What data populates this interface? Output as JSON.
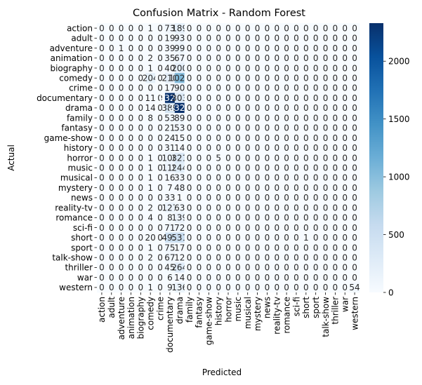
{
  "chart_data": {
    "type": "heatmap",
    "title": "Confusion Matrix - Random Forest",
    "xlabel": "Predicted",
    "ylabel": "Actual",
    "labels": [
      "action",
      "adult",
      "adventure",
      "animation",
      "biography",
      "comedy",
      "crime",
      "documentary",
      "drama",
      "family",
      "fantasy",
      "game-show",
      "history",
      "horror",
      "music",
      "musical",
      "mystery",
      "news",
      "reality-tv",
      "romance",
      "sci-fi",
      "short",
      "sport",
      "talk-show",
      "thriller",
      "war",
      "western"
    ],
    "matrix": [
      [
        0,
        0,
        0,
        0,
        0,
        1,
        0,
        73,
        189,
        0,
        0,
        0,
        0,
        0,
        0,
        0,
        0,
        0,
        0,
        0,
        0,
        0,
        0,
        0,
        0,
        0,
        0
      ],
      [
        0,
        0,
        0,
        0,
        0,
        0,
        0,
        19,
        93,
        0,
        0,
        0,
        0,
        0,
        0,
        0,
        0,
        0,
        0,
        0,
        0,
        0,
        0,
        0,
        0,
        0,
        0
      ],
      [
        0,
        0,
        1,
        0,
        0,
        0,
        0,
        39,
        99,
        0,
        0,
        0,
        0,
        0,
        0,
        0,
        0,
        0,
        0,
        0,
        0,
        0,
        0,
        0,
        0,
        0,
        0
      ],
      [
        0,
        0,
        0,
        0,
        0,
        2,
        0,
        35,
        67,
        0,
        0,
        0,
        0,
        0,
        0,
        0,
        0,
        0,
        0,
        0,
        0,
        0,
        0,
        0,
        0,
        0,
        0
      ],
      [
        0,
        0,
        0,
        0,
        0,
        1,
        0,
        40,
        200,
        0,
        0,
        0,
        0,
        0,
        0,
        0,
        0,
        0,
        0,
        0,
        0,
        0,
        0,
        0,
        0,
        0,
        0
      ],
      [
        0,
        0,
        0,
        0,
        0,
        204,
        0,
        210,
        1028,
        0,
        0,
        0,
        0,
        0,
        0,
        0,
        0,
        0,
        0,
        0,
        0,
        0,
        0,
        0,
        0,
        0,
        0
      ],
      [
        0,
        0,
        0,
        0,
        0,
        0,
        0,
        17,
        90,
        0,
        0,
        0,
        0,
        0,
        0,
        0,
        0,
        0,
        0,
        0,
        0,
        0,
        0,
        0,
        0,
        0,
        0
      ],
      [
        0,
        0,
        0,
        0,
        0,
        11,
        0,
        2324,
        303,
        0,
        0,
        0,
        0,
        0,
        0,
        0,
        0,
        0,
        0,
        0,
        0,
        0,
        0,
        0,
        0,
        0,
        0
      ],
      [
        0,
        0,
        0,
        0,
        0,
        14,
        0,
        389,
        2329,
        0,
        0,
        0,
        0,
        0,
        0,
        0,
        0,
        0,
        0,
        0,
        0,
        0,
        0,
        0,
        0,
        0,
        0
      ],
      [
        0,
        0,
        0,
        0,
        0,
        8,
        0,
        53,
        89,
        0,
        0,
        0,
        0,
        0,
        0,
        0,
        0,
        0,
        0,
        0,
        0,
        0,
        0,
        0,
        0,
        0,
        0
      ],
      [
        0,
        0,
        0,
        0,
        0,
        0,
        0,
        21,
        53,
        0,
        0,
        0,
        0,
        0,
        0,
        0,
        0,
        0,
        0,
        0,
        0,
        0,
        0,
        0,
        0,
        0,
        0
      ],
      [
        0,
        0,
        0,
        0,
        0,
        0,
        0,
        24,
        15,
        0,
        0,
        0,
        0,
        0,
        0,
        0,
        0,
        0,
        0,
        0,
        0,
        0,
        0,
        0,
        0,
        0,
        0
      ],
      [
        0,
        0,
        0,
        0,
        0,
        0,
        0,
        31,
        14,
        0,
        0,
        0,
        0,
        0,
        0,
        0,
        0,
        0,
        0,
        0,
        0,
        0,
        0,
        0,
        0,
        0,
        0
      ],
      [
        0,
        0,
        0,
        0,
        0,
        1,
        0,
        108,
        321,
        0,
        0,
        0,
        5,
        0,
        0,
        0,
        0,
        0,
        0,
        0,
        0,
        0,
        0,
        0,
        0,
        0,
        0
      ],
      [
        0,
        0,
        0,
        0,
        0,
        1,
        0,
        119,
        244,
        0,
        0,
        0,
        0,
        0,
        0,
        0,
        0,
        0,
        0,
        0,
        0,
        0,
        0,
        0,
        0,
        0,
        0
      ],
      [
        0,
        0,
        0,
        0,
        0,
        1,
        0,
        16,
        33,
        0,
        0,
        0,
        0,
        0,
        0,
        0,
        0,
        0,
        0,
        0,
        0,
        0,
        0,
        0,
        0,
        0,
        0
      ],
      [
        0,
        0,
        0,
        0,
        0,
        1,
        0,
        7,
        48,
        0,
        0,
        0,
        0,
        0,
        0,
        0,
        0,
        0,
        0,
        0,
        0,
        0,
        0,
        0,
        0,
        0,
        0
      ],
      [
        0,
        0,
        0,
        0,
        0,
        0,
        0,
        33,
        1,
        0,
        0,
        0,
        0,
        0,
        0,
        0,
        0,
        0,
        0,
        0,
        0,
        0,
        0,
        0,
        0,
        0,
        0
      ],
      [
        0,
        0,
        0,
        0,
        0,
        2,
        0,
        127,
        63,
        0,
        0,
        0,
        0,
        0,
        0,
        0,
        0,
        0,
        0,
        0,
        0,
        0,
        0,
        0,
        0,
        0,
        0
      ],
      [
        0,
        0,
        0,
        0,
        0,
        4,
        0,
        8,
        139,
        0,
        0,
        0,
        0,
        0,
        0,
        0,
        0,
        0,
        0,
        0,
        0,
        0,
        0,
        0,
        0,
        0,
        0
      ],
      [
        0,
        0,
        0,
        0,
        0,
        0,
        0,
        71,
        72,
        0,
        0,
        0,
        0,
        0,
        0,
        0,
        0,
        0,
        0,
        0,
        0,
        0,
        0,
        0,
        0,
        0,
        0
      ],
      [
        0,
        0,
        0,
        0,
        0,
        20,
        0,
        493,
        531,
        0,
        0,
        0,
        0,
        0,
        0,
        0,
        0,
        0,
        0,
        0,
        0,
        1,
        0,
        0,
        0,
        0,
        0
      ],
      [
        0,
        0,
        0,
        0,
        0,
        1,
        0,
        75,
        17,
        0,
        0,
        0,
        0,
        0,
        0,
        0,
        0,
        0,
        0,
        0,
        0,
        0,
        0,
        0,
        0,
        0,
        0
      ],
      [
        0,
        0,
        0,
        0,
        0,
        2,
        0,
        67,
        12,
        0,
        0,
        0,
        0,
        0,
        0,
        0,
        0,
        0,
        0,
        0,
        0,
        0,
        0,
        0,
        0,
        0,
        0
      ],
      [
        0,
        0,
        0,
        0,
        0,
        0,
        0,
        45,
        264,
        0,
        0,
        0,
        0,
        0,
        0,
        0,
        0,
        0,
        0,
        0,
        0,
        0,
        0,
        0,
        0,
        0,
        0
      ],
      [
        0,
        0,
        0,
        0,
        0,
        0,
        0,
        6,
        14,
        0,
        0,
        0,
        0,
        0,
        0,
        0,
        0,
        0,
        0,
        0,
        0,
        0,
        0,
        0,
        0,
        0,
        0
      ],
      [
        0,
        0,
        0,
        0,
        0,
        1,
        0,
        9,
        136,
        0,
        0,
        0,
        0,
        0,
        0,
        0,
        0,
        0,
        0,
        0,
        0,
        0,
        0,
        0,
        0,
        0,
        54
      ]
    ],
    "colorbar": {
      "colormap": "Blues",
      "vmin": 0,
      "vmax": 2329,
      "ticks": [
        0,
        500,
        1000,
        1500,
        2000
      ]
    },
    "colors": {
      "low": "#f7fbff",
      "high": "#08306b",
      "text_dark": "#262626",
      "text_light": "#ffffff"
    }
  }
}
